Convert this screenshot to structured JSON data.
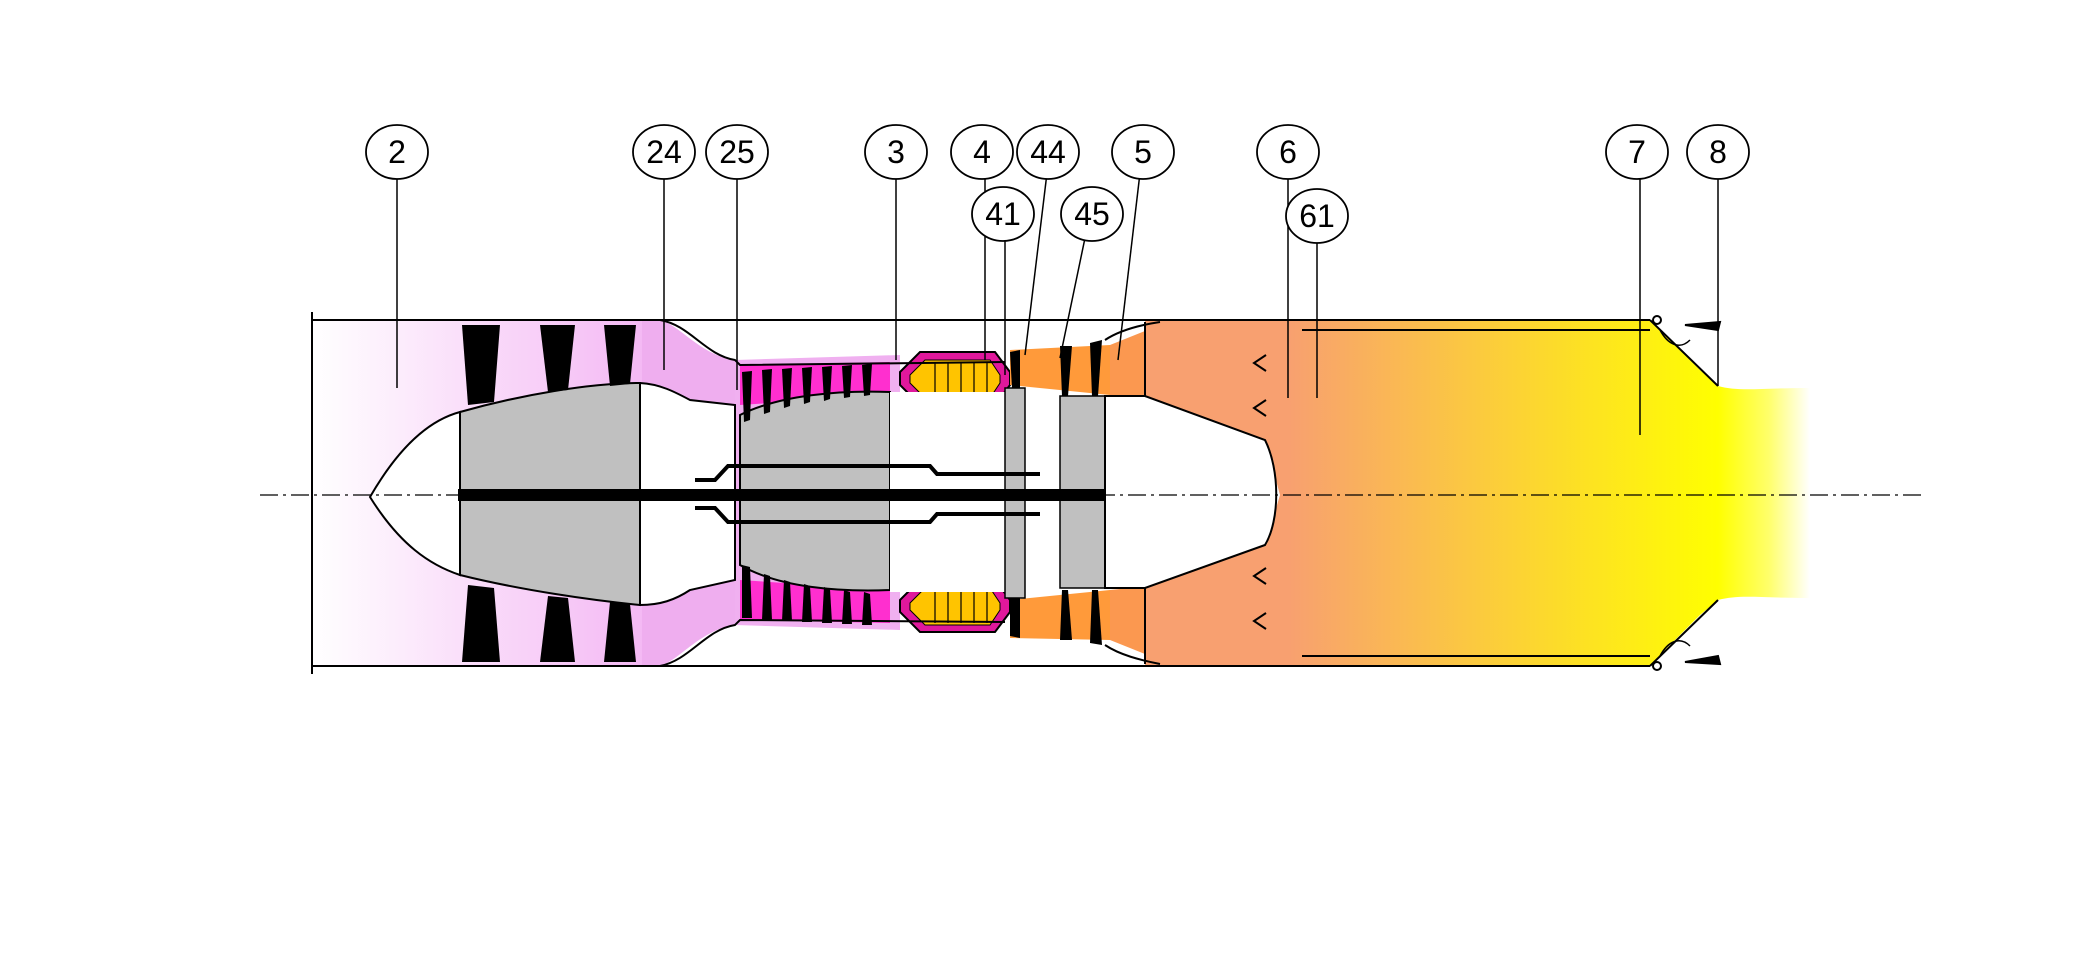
{
  "diagram": {
    "station_labels": [
      "2",
      "24",
      "25",
      "3",
      "4",
      "44",
      "5",
      "6",
      "7",
      "8",
      "41",
      "45",
      "61"
    ],
    "colors": {
      "inlet": "#f3b8f3",
      "compressor_duct": "#e9a8e9",
      "compressor_stage": "#ff2fd0",
      "combustor_liner": "#e0179b",
      "combustor_core": "#ffc400",
      "turbine": "#ff9a3a",
      "jetpipe": "#f8a373",
      "nozzle_exit": "#ffff00",
      "spinner": "#c0c0c0",
      "blade": "#000000",
      "outline": "#000000"
    }
  }
}
